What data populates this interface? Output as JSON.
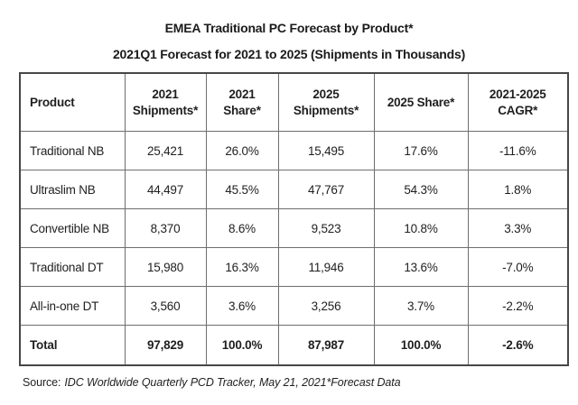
{
  "page": {
    "title": "EMEA Traditional PC Forecast by Product*",
    "subtitle": "2021Q1 Forecast for 2021 to 2025 (Shipments in Thousands)"
  },
  "table": {
    "columns": [
      "Product",
      "2021\nShipments*",
      "2021\nShare*",
      "2025\nShipments*",
      "2025 Share*",
      "2021-2025\nCAGR*"
    ],
    "rows": [
      [
        "Traditional NB",
        "25,421",
        "26.0%",
        "15,495",
        "17.6%",
        "-11.6%"
      ],
      [
        "Ultraslim NB",
        "44,497",
        "45.5%",
        "47,767",
        "54.3%",
        "1.8%"
      ],
      [
        "Convertible NB",
        "8,370",
        "8.6%",
        "9,523",
        "10.8%",
        "3.3%"
      ],
      [
        "Traditional DT",
        "15,980",
        "16.3%",
        "11,946",
        "13.6%",
        "-7.0%"
      ],
      [
        "All-in-one DT",
        "3,560",
        "3.6%",
        "3,256",
        "3.7%",
        "-2.2%"
      ],
      [
        "Total",
        "97,829",
        "100.0%",
        "87,987",
        "100.0%",
        "-2.6%"
      ]
    ]
  },
  "source": {
    "prefix": "Source:",
    "text": "IDC Worldwide Quarterly PCD Tracker, May 21, 2021*Forecast Data"
  },
  "chart_data": {
    "type": "table",
    "title": "EMEA Traditional PC Forecast by Product*",
    "subtitle": "2021Q1 Forecast for 2021 to 2025 (Shipments in Thousands)",
    "columns": [
      "Product",
      "2021 Shipments*",
      "2021 Share*",
      "2025 Shipments*",
      "2025 Share*",
      "2021-2025 CAGR*"
    ],
    "rows": [
      {
        "product": "Traditional NB",
        "shipments_2021": 25421,
        "share_2021_pct": 26.0,
        "shipments_2025": 15495,
        "share_2025_pct": 17.6,
        "cagr_2021_2025_pct": -11.6
      },
      {
        "product": "Ultraslim NB",
        "shipments_2021": 44497,
        "share_2021_pct": 45.5,
        "shipments_2025": 47767,
        "share_2025_pct": 54.3,
        "cagr_2021_2025_pct": 1.8
      },
      {
        "product": "Convertible NB",
        "shipments_2021": 8370,
        "share_2021_pct": 8.6,
        "shipments_2025": 9523,
        "share_2025_pct": 10.8,
        "cagr_2021_2025_pct": 3.3
      },
      {
        "product": "Traditional DT",
        "shipments_2021": 15980,
        "share_2021_pct": 16.3,
        "shipments_2025": 11946,
        "share_2025_pct": 13.6,
        "cagr_2021_2025_pct": -7.0
      },
      {
        "product": "All-in-one DT",
        "shipments_2021": 3560,
        "share_2021_pct": 3.6,
        "shipments_2025": 3256,
        "share_2025_pct": 3.7,
        "cagr_2021_2025_pct": -2.2
      },
      {
        "product": "Total",
        "shipments_2021": 97829,
        "share_2021_pct": 100.0,
        "shipments_2025": 87987,
        "share_2025_pct": 100.0,
        "cagr_2021_2025_pct": -2.6
      }
    ],
    "source": "Source: IDC Worldwide Quarterly PCD Tracker, May 21, 2021*Forecast Data",
    "units": "Shipments in Thousands"
  }
}
